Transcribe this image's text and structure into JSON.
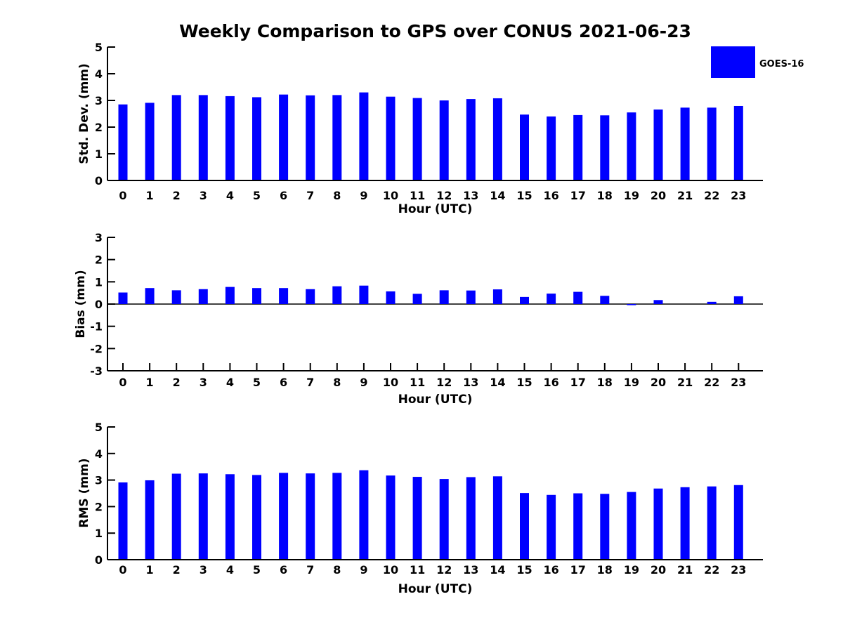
{
  "figure": {
    "title": "Weekly Comparison to GPS over CONUS 2021-06-23",
    "legend": {
      "label": "GOES-16",
      "color": "#0000ff"
    },
    "bar_color": "#0000ff",
    "axis_color": "#000000"
  },
  "chart_data": [
    {
      "type": "bar",
      "title": "",
      "ylabel": "Std. Dev. (mm)",
      "xlabel": "Hour (UTC)",
      "ylim": [
        0,
        5
      ],
      "yticks": [
        0,
        1,
        2,
        3,
        4,
        5
      ],
      "grid": false,
      "legend_position": "upper-right-outside",
      "categories": [
        "0",
        "1",
        "2",
        "3",
        "4",
        "5",
        "6",
        "7",
        "8",
        "9",
        "10",
        "11",
        "12",
        "13",
        "14",
        "15",
        "16",
        "17",
        "18",
        "19",
        "20",
        "21",
        "22",
        "23"
      ],
      "series": [
        {
          "name": "GOES-16",
          "values": [
            2.85,
            2.91,
            3.2,
            3.2,
            3.16,
            3.12,
            3.22,
            3.19,
            3.2,
            3.3,
            3.14,
            3.09,
            3.0,
            3.05,
            3.08,
            2.47,
            2.4,
            2.45,
            2.44,
            2.55,
            2.66,
            2.73,
            2.73,
            2.79
          ]
        }
      ]
    },
    {
      "type": "bar",
      "title": "",
      "ylabel": "Bias (mm)",
      "xlabel": "Hour (UTC)",
      "ylim": [
        -3,
        3
      ],
      "yticks": [
        -3,
        -2,
        -1,
        0,
        1,
        2,
        3
      ],
      "grid": false,
      "categories": [
        "0",
        "1",
        "2",
        "3",
        "4",
        "5",
        "6",
        "7",
        "8",
        "9",
        "10",
        "11",
        "12",
        "13",
        "14",
        "15",
        "16",
        "17",
        "18",
        "19",
        "20",
        "21",
        "22",
        "23"
      ],
      "series": [
        {
          "name": "GOES-16",
          "values": [
            0.52,
            0.72,
            0.62,
            0.67,
            0.77,
            0.72,
            0.72,
            0.67,
            0.8,
            0.83,
            0.57,
            0.46,
            0.62,
            0.61,
            0.66,
            0.32,
            0.47,
            0.55,
            0.37,
            -0.05,
            0.18,
            0.0,
            0.1,
            0.35
          ]
        }
      ]
    },
    {
      "type": "bar",
      "title": "",
      "ylabel": "RMS (mm)",
      "xlabel": "Hour (UTC)",
      "ylim": [
        0,
        5
      ],
      "yticks": [
        0,
        1,
        2,
        3,
        4,
        5
      ],
      "grid": false,
      "categories": [
        "0",
        "1",
        "2",
        "3",
        "4",
        "5",
        "6",
        "7",
        "8",
        "9",
        "10",
        "11",
        "12",
        "13",
        "14",
        "15",
        "16",
        "17",
        "18",
        "19",
        "20",
        "21",
        "22",
        "23"
      ],
      "series": [
        {
          "name": "GOES-16",
          "values": [
            2.91,
            2.99,
            3.24,
            3.25,
            3.22,
            3.19,
            3.27,
            3.25,
            3.27,
            3.37,
            3.17,
            3.12,
            3.04,
            3.11,
            3.14,
            2.51,
            2.44,
            2.5,
            2.48,
            2.55,
            2.68,
            2.73,
            2.76,
            2.81
          ]
        }
      ]
    }
  ]
}
